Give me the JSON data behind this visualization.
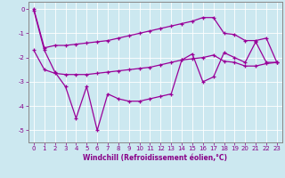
{
  "xlabel": "Windchill (Refroidissement éolien,°C)",
  "x": [
    0,
    1,
    2,
    3,
    4,
    5,
    6,
    7,
    8,
    9,
    10,
    11,
    12,
    13,
    14,
    15,
    16,
    17,
    18,
    19,
    20,
    21,
    22,
    23
  ],
  "line1": [
    0.0,
    -1.6,
    -1.5,
    -1.5,
    -1.45,
    -1.4,
    -1.35,
    -1.3,
    -1.2,
    -1.1,
    -1.0,
    -0.9,
    -0.8,
    -0.7,
    -0.6,
    -0.5,
    -0.35,
    -0.35,
    -1.0,
    -1.05,
    -1.3,
    -1.3,
    -1.2,
    -2.2
  ],
  "line2": [
    -0.05,
    -1.7,
    -2.6,
    -3.2,
    -4.5,
    -3.2,
    -5.0,
    -3.5,
    -3.7,
    -3.8,
    -3.8,
    -3.7,
    -3.6,
    -3.5,
    -2.1,
    -1.85,
    -3.0,
    -2.8,
    -1.8,
    -2.0,
    -2.2,
    -1.35,
    -2.2,
    -2.2
  ],
  "line3": [
    -1.7,
    -2.5,
    -2.65,
    -2.7,
    -2.7,
    -2.7,
    -2.65,
    -2.6,
    -2.55,
    -2.5,
    -2.45,
    -2.4,
    -2.3,
    -2.2,
    -2.1,
    -2.05,
    -2.0,
    -1.9,
    -2.15,
    -2.2,
    -2.35,
    -2.35,
    -2.25,
    -2.2
  ],
  "bg_color": "#cce8f0",
  "line_color": "#990099",
  "grid_color": "#aaddee",
  "ylim": [
    -5.5,
    0.3
  ],
  "yticks": [
    0,
    -1,
    -2,
    -3,
    -4,
    -5
  ],
  "text_color": "#880088",
  "spine_color": "#888888",
  "figsize": [
    3.2,
    2.0
  ],
  "dpi": 100
}
